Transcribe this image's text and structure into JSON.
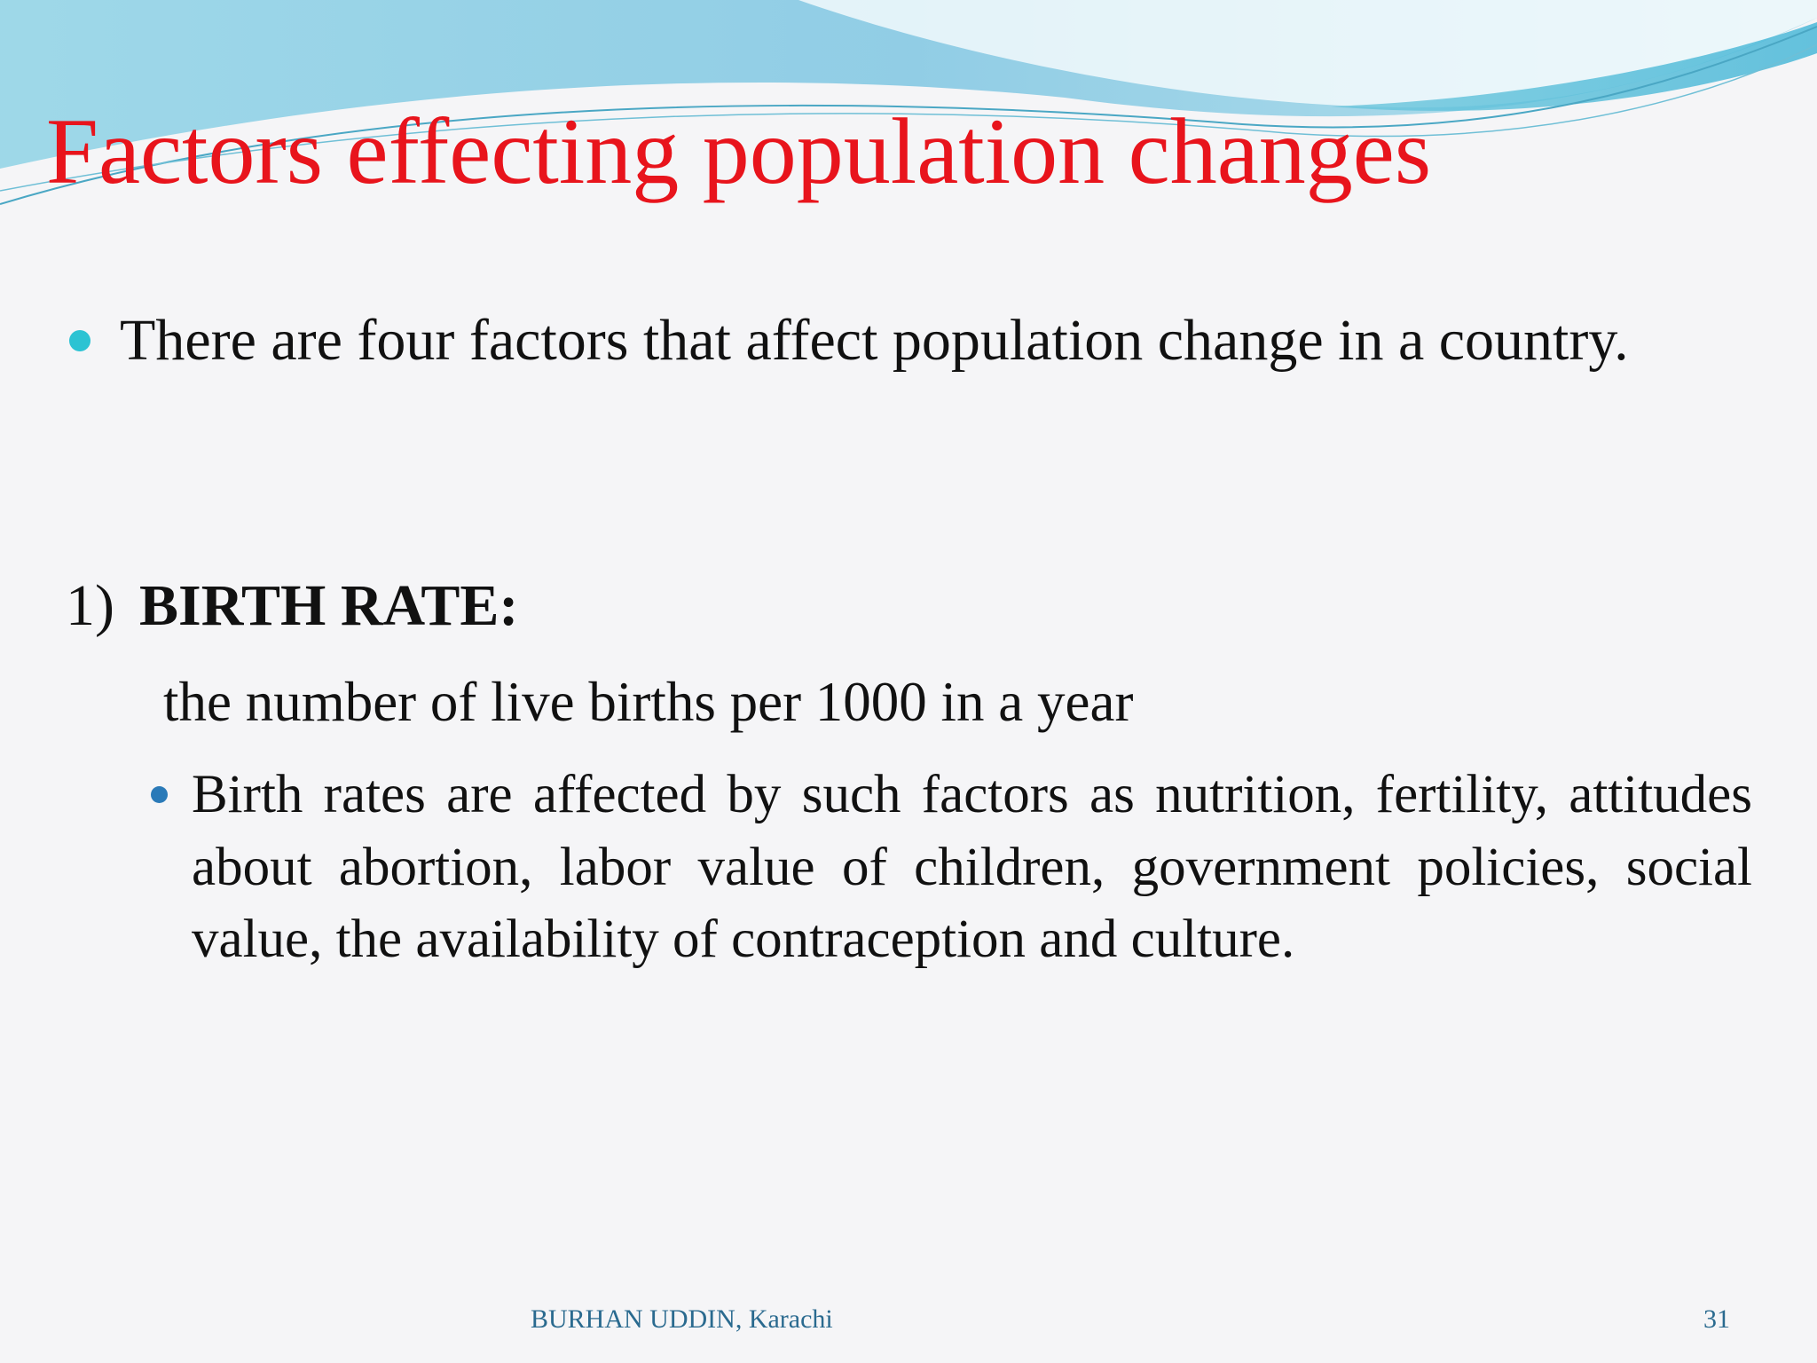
{
  "title": "Factors effecting population changes",
  "intro_bullet": "There are four factors that affect  population change in a country.",
  "section": {
    "number": "1)",
    "heading": "BIRTH RATE:",
    "definition": "the number of live births per 1000 in a year",
    "bullet": "Birth rates are affected by such factors as nutrition, fertility, attitudes about abortion, labor value of children, government policies, social value, the availability of contraception and culture."
  },
  "footer": {
    "author": "BURHAN UDDIN, Karachi",
    "page": "31"
  }
}
